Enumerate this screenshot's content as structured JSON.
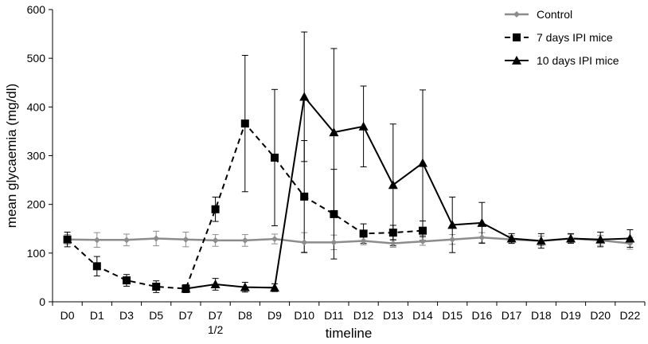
{
  "chart_data": {
    "type": "line",
    "title": "",
    "xlabel": "timeline",
    "ylabel": "mean glycaemia (mg/dl)",
    "ylim": [
      0,
      600
    ],
    "yticks": [
      0,
      100,
      200,
      300,
      400,
      500,
      600
    ],
    "grid": false,
    "legend_position": "top-right",
    "categories": [
      "D0",
      "D1",
      "D3",
      "D5",
      "D7",
      "D7 1/2",
      "D8",
      "D9",
      "D10",
      "D11",
      "D12",
      "D13",
      "D14",
      "D15",
      "D16",
      "D17",
      "D18",
      "D19",
      "D20",
      "D22"
    ],
    "category_labels": [
      [
        "D0"
      ],
      [
        "D1"
      ],
      [
        "D3"
      ],
      [
        "D5"
      ],
      [
        "D7"
      ],
      [
        "D7",
        "1/2"
      ],
      [
        "D8"
      ],
      [
        "D9"
      ],
      [
        "D10"
      ],
      [
        "D11"
      ],
      [
        "D12"
      ],
      [
        "D13"
      ],
      [
        "D14"
      ],
      [
        "D15"
      ],
      [
        "D16"
      ],
      [
        "D17"
      ],
      [
        "D18"
      ],
      [
        "D19"
      ],
      [
        "D20"
      ],
      [
        "D22"
      ]
    ],
    "series": [
      {
        "name": "Control",
        "color": "#8c8c8c",
        "line_style": "solid",
        "marker": "diamond",
        "values": [
          128,
          127,
          127,
          130,
          128,
          126,
          126,
          129,
          122,
          122,
          125,
          120,
          124,
          128,
          132,
          128,
          125,
          130,
          126,
          120
        ],
        "error": [
          10,
          15,
          12,
          15,
          15,
          12,
          12,
          10,
          20,
          15,
          8,
          8,
          8,
          10,
          10,
          8,
          10,
          8,
          10,
          12
        ]
      },
      {
        "name": "7 days IPI mice",
        "color": "#000000",
        "line_style": "dashed",
        "marker": "square",
        "values": [
          128,
          73,
          44,
          31,
          27,
          190,
          366,
          296,
          216,
          180,
          140,
          142,
          146,
          null,
          null,
          null,
          null,
          null,
          null,
          null
        ],
        "error": [
          15,
          20,
          12,
          12,
          8,
          25,
          140,
          140,
          115,
          92,
          20,
          15,
          20,
          null,
          null,
          null,
          null,
          null,
          null,
          null
        ]
      },
      {
        "name": "10 days IPI mice",
        "color": "#000000",
        "line_style": "solid",
        "marker": "triangle",
        "values": [
          null,
          null,
          null,
          null,
          27,
          36,
          30,
          29,
          421,
          348,
          360,
          240,
          285,
          158,
          162,
          130,
          125,
          130,
          128,
          130
        ],
        "error": [
          null,
          null,
          null,
          null,
          8,
          12,
          10,
          8,
          133,
          172,
          83,
          125,
          150,
          57,
          42,
          10,
          15,
          10,
          15,
          18
        ]
      }
    ]
  }
}
